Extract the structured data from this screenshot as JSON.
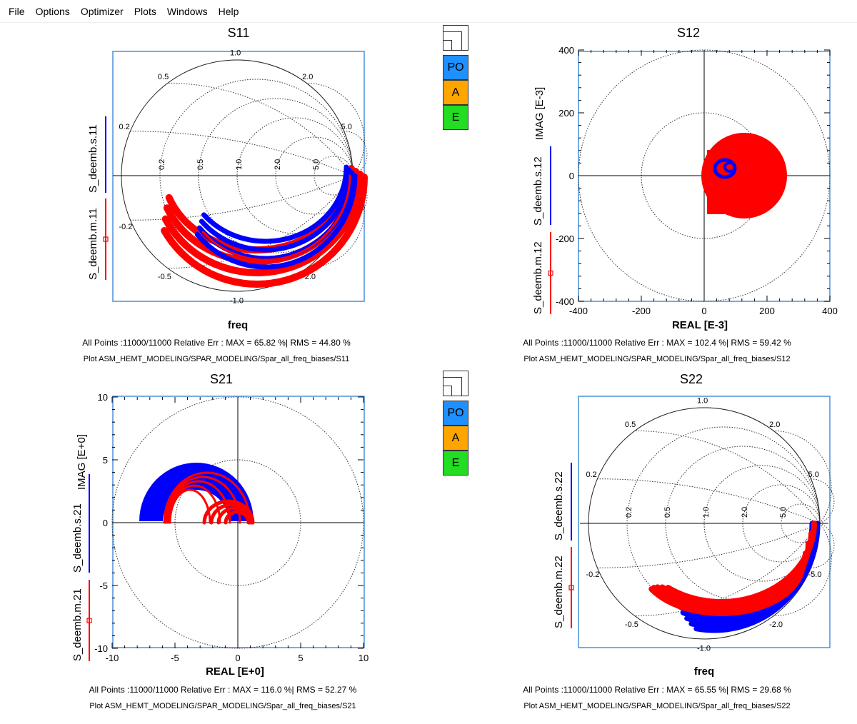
{
  "menu": [
    "File",
    "Options",
    "Optimizer",
    "Plots",
    "Windows",
    "Help"
  ],
  "colors": {
    "measured": "#ff0000",
    "simulated": "#0000ff",
    "po": "#1e90ff",
    "a": "#ffa500",
    "e": "#22dd22",
    "frame": "#4a90d9"
  },
  "widget": {
    "po": "PO",
    "a": "A",
    "e": "E",
    "icon": "layout-icon"
  },
  "panels": {
    "s11": {
      "title": "S11",
      "type": "smith",
      "xlabel": "freq",
      "legend_sim": "S_deemb.s.11",
      "legend_meas": "S_deemb.m.11",
      "info": "All Points :11000/11000 Relative  Err : MAX = 65.82  %| RMS = 44.80  %",
      "plot": "Plot ASM_HEMT_MODELING/SPAR_MODELING/Spar_all_freq_biases/S11"
    },
    "s12": {
      "title": "S12",
      "type": "polar",
      "xlabel": "REAL [E-3]",
      "ylabel": "IMAG [E-3]",
      "legend_sim": "S_deemb.s.12",
      "legend_meas": "S_deemb.m.12",
      "xticks": [
        "-400",
        "-200",
        "0",
        "200",
        "400"
      ],
      "yticks": [
        "400",
        "200",
        "0",
        "-200",
        "-400"
      ],
      "info": "All Points :11000/11000 Relative  Err : MAX = 102.4  %| RMS = 59.42  %",
      "plot": "Plot ASM_HEMT_MODELING/SPAR_MODELING/Spar_all_freq_biases/S12"
    },
    "s21": {
      "title": "S21",
      "type": "polar",
      "xlabel": "REAL [E+0]",
      "ylabel": "IMAG [E+0]",
      "legend_sim": "S_deemb.s.21",
      "legend_meas": "S_deemb.m.21",
      "xticks": [
        "-10",
        "-5",
        "0",
        "5",
        "10"
      ],
      "yticks": [
        "10",
        "5",
        "0",
        "-5",
        "-10"
      ],
      "info": "All Points :11000/11000 Relative  Err : MAX = 116.0  %| RMS = 52.27  %",
      "plot": "Plot ASM_HEMT_MODELING/SPAR_MODELING/Spar_all_freq_biases/S21"
    },
    "s22": {
      "title": "S22",
      "type": "smith",
      "xlabel": "freq",
      "legend_sim": "S_deemb.s.22",
      "legend_meas": "S_deemb.m.22",
      "info": "All Points :11000/11000 Relative  Err : MAX = 65.55  %| RMS = 29.68  %",
      "plot": "Plot ASM_HEMT_MODELING/SPAR_MODELING/Spar_all_freq_biases/S22"
    }
  },
  "smith_labels": {
    "r": [
      "0.2",
      "0.5",
      "1.0",
      "2.0",
      "5.0"
    ],
    "xpos": [
      "0.2",
      "0.5",
      "1.0",
      "2.0",
      "5.0"
    ],
    "xneg": [
      "-0.2",
      "-0.5",
      "-1.0",
      "-2.0",
      "-5.0"
    ]
  }
}
